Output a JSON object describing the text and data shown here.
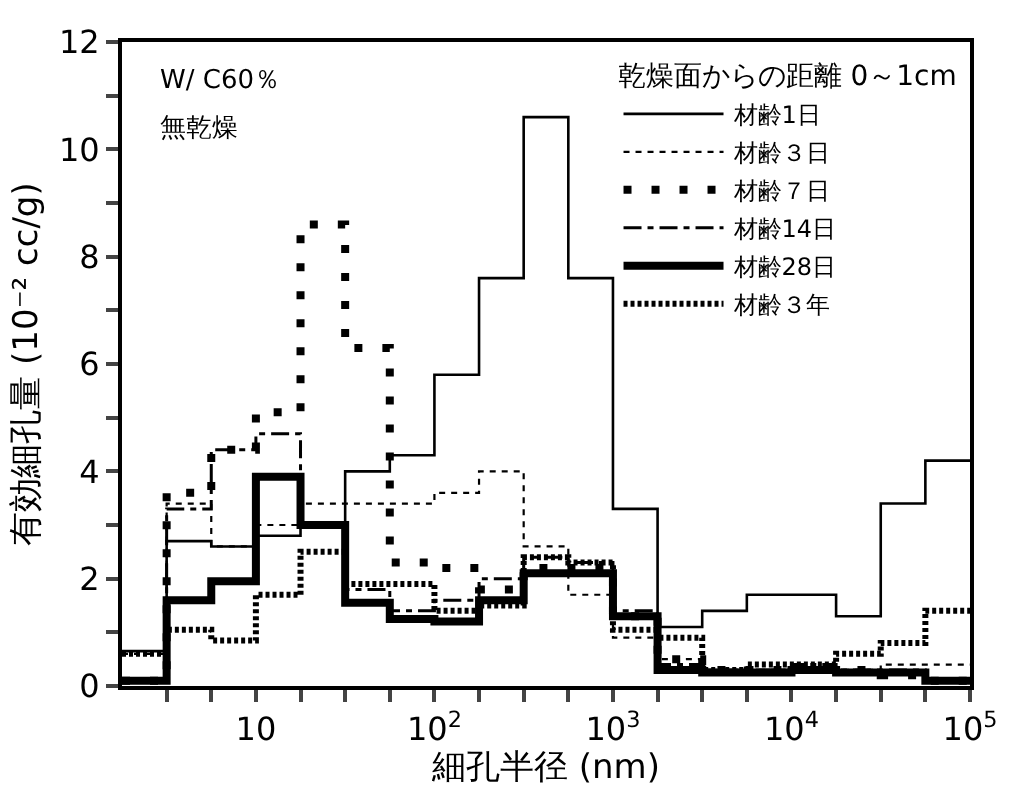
{
  "chart_data": {
    "type": "step",
    "xlabel": "細孔半径 (nm)",
    "ylabel": "有効細孔量 (10⁻² cc/g)",
    "legend_title": "乾燥面からの距離 0～1cm",
    "annotations": [
      "W/ C60％",
      "無乾燥"
    ],
    "log": "x",
    "x": [
      1.778,
      3.162,
      5.623,
      10,
      17.78,
      31.62,
      56.23,
      100,
      177.8,
      316.2,
      562.3,
      1000,
      1778,
      3162,
      5623,
      10000,
      17783,
      31623,
      56234,
      100000
    ],
    "series": [
      {
        "name": "材齢1日",
        "color": "#000000",
        "line_style": "solid",
        "values": [
          0.65,
          2.7,
          2.6,
          2.8,
          3.0,
          4.0,
          4.3,
          5.8,
          7.6,
          10.6,
          7.6,
          3.3,
          1.1,
          1.4,
          1.7,
          1.7,
          1.3,
          3.4,
          4.2,
          4.2
        ]
      },
      {
        "name": "材齢３日",
        "color": "#000000",
        "line_style": "dotted",
        "values": [
          0.6,
          3.4,
          2.6,
          3.0,
          3.4,
          3.4,
          3.4,
          3.6,
          4.0,
          2.6,
          1.7,
          0.9,
          0.5,
          0.3,
          0.3,
          0.3,
          0.3,
          0.4,
          0.4,
          0.4
        ]
      },
      {
        "name": "材齢７日",
        "color": "#000000",
        "line_style": "bigdots",
        "values": [
          0.1,
          3.6,
          4.4,
          5.1,
          8.6,
          6.3,
          2.3,
          2.2,
          1.8,
          2.2,
          2.2,
          1.3,
          0.5,
          0.3,
          0.3,
          0.3,
          0.3,
          0.2,
          0.1,
          0.1
        ]
      },
      {
        "name": "材齢14日",
        "color": "#000000",
        "line_style": "dashdot",
        "values": [
          0.1,
          3.3,
          4.4,
          4.7,
          3.0,
          1.8,
          1.4,
          1.6,
          2.0,
          2.4,
          2.3,
          1.4,
          0.4,
          0.3,
          0.3,
          0.4,
          0.3,
          0.3,
          0.1,
          0.1
        ]
      },
      {
        "name": "材齢28日",
        "color": "#000000",
        "line_style": "solid",
        "values": [
          0.1,
          1.6,
          1.95,
          3.9,
          3.0,
          1.55,
          1.25,
          1.2,
          1.6,
          2.1,
          2.1,
          1.3,
          0.3,
          0.25,
          0.25,
          0.3,
          0.25,
          0.25,
          0.1,
          0.1
        ]
      },
      {
        "name": "材齢３年",
        "color": "#000000",
        "line_style": "densedots",
        "values": [
          0.6,
          1.05,
          0.85,
          1.7,
          2.5,
          1.9,
          1.9,
          1.4,
          1.5,
          2.4,
          2.3,
          1.05,
          0.9,
          0.3,
          0.4,
          0.4,
          0.6,
          0.8,
          1.4,
          1.4
        ]
      }
    ],
    "xlim": [
      1.778,
      100000
    ],
    "xticks": [
      {
        "value": 3.162,
        "label": null
      },
      {
        "value": 5.623,
        "label": null
      },
      {
        "value": 10,
        "label": "10"
      },
      {
        "value": 17.78,
        "label": null
      },
      {
        "value": 31.62,
        "label": null
      },
      {
        "value": 56.23,
        "label": null
      },
      {
        "value": 100,
        "label": "10$^{2}$"
      },
      {
        "value": 177.8,
        "label": null
      },
      {
        "value": 316.2,
        "label": null
      },
      {
        "value": 562.3,
        "label": null
      },
      {
        "value": 1000,
        "label": "10$^{3}$"
      },
      {
        "value": 1778,
        "label": null
      },
      {
        "value": 3162,
        "label": null
      },
      {
        "value": 5623,
        "label": null
      },
      {
        "value": 10000,
        "label": "10$^{4}$"
      },
      {
        "value": 17783,
        "label": null
      },
      {
        "value": 31623,
        "label": null
      },
      {
        "value": 56234,
        "label": null
      },
      {
        "value": 100000,
        "label": "10$^{5}$"
      }
    ],
    "ylim": [
      0,
      12
    ],
    "yticks": [
      0,
      {
        "value": 1,
        "label": null
      },
      2,
      {
        "value": 3,
        "label": null
      },
      4,
      {
        "value": 5,
        "label": null
      },
      6,
      {
        "value": 7,
        "label": null
      },
      8,
      {
        "value": 9,
        "label": null
      },
      10,
      {
        "value": 11,
        "label": null
      },
      12
    ],
    "legend": "top right"
  }
}
